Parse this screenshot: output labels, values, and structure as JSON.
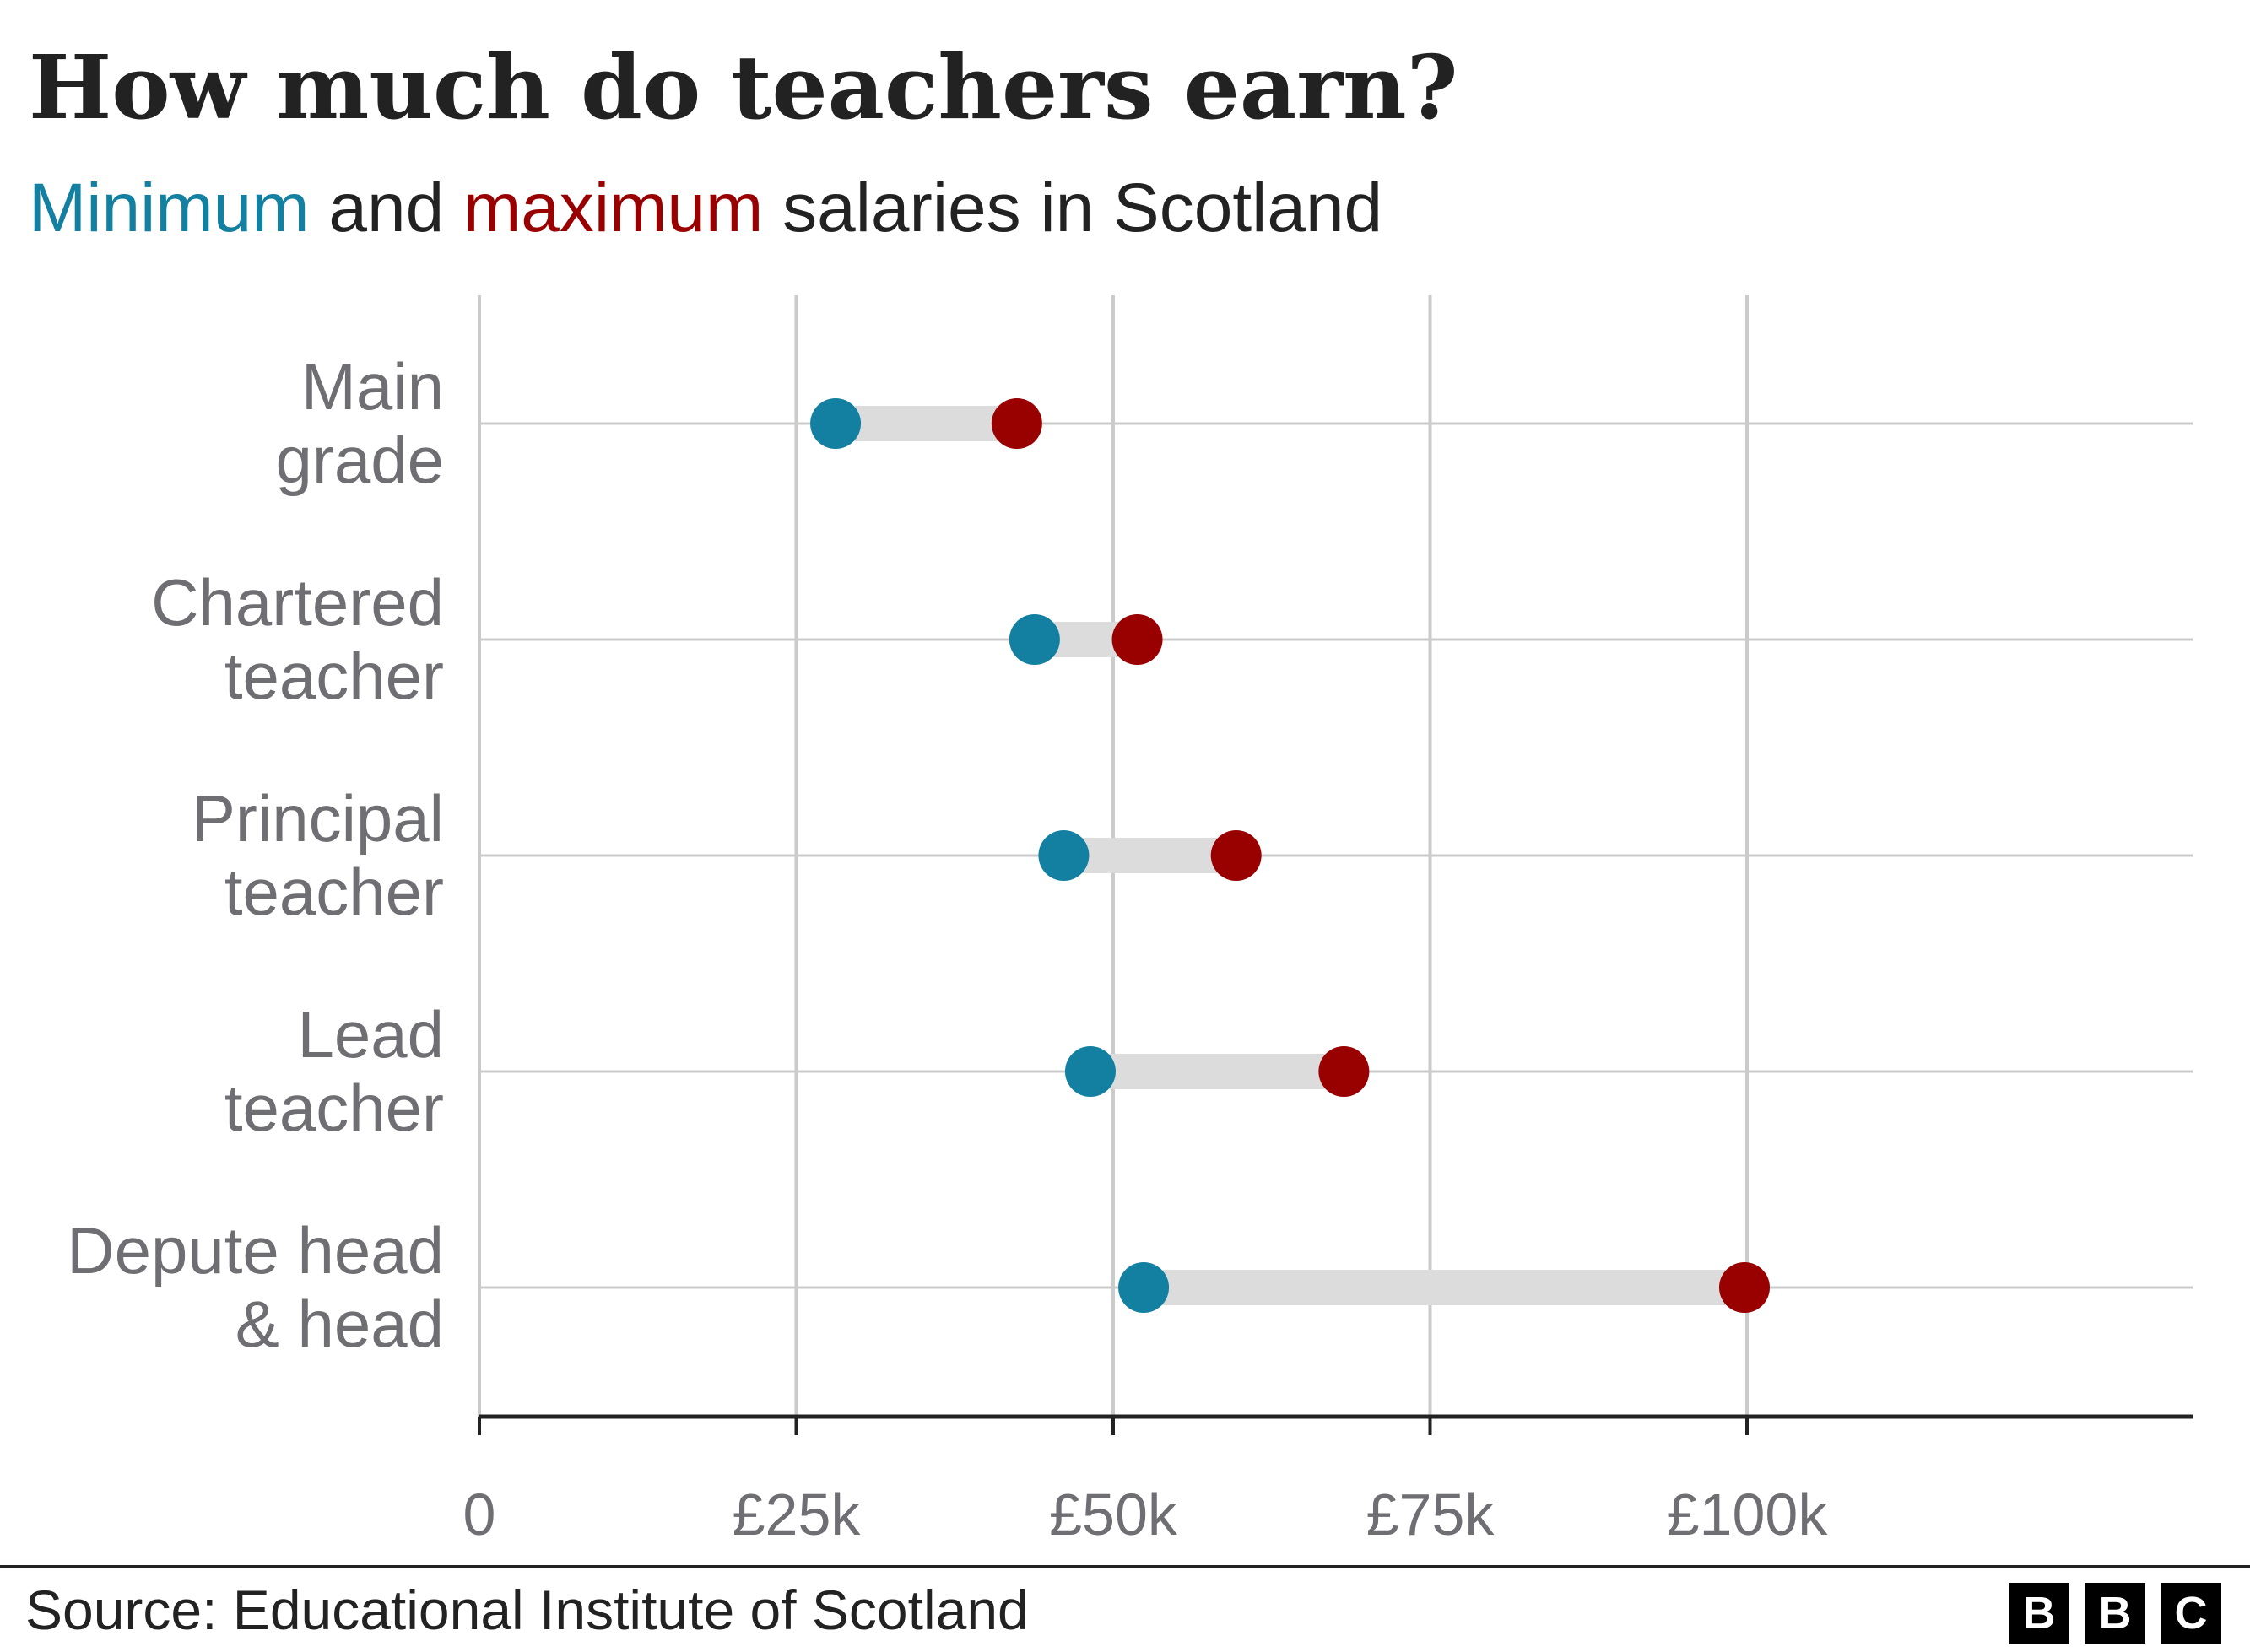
{
  "header": {
    "title": "How much do teachers earn?",
    "subtitle_parts": {
      "min_word": "Minimum",
      "and_word": " and ",
      "max_word": "maximum",
      "rest": " salaries in Scotland"
    }
  },
  "colors": {
    "min": "#1380a1",
    "max": "#990000",
    "text": "#222222",
    "category_text": "#6e6e73",
    "gridline": "#cbcbcb",
    "range_bar": "#dcdcdc",
    "axis": "#222222"
  },
  "chart_data": {
    "type": "dumbbell",
    "title": "How much do teachers earn?",
    "subtitle": "Minimum and maximum salaries in Scotland",
    "categories": [
      [
        "Main",
        "grade"
      ],
      [
        "Chartered",
        "teacher"
      ],
      [
        "Principal",
        "teacher"
      ],
      [
        "Lead",
        "teacher"
      ],
      [
        "Depute head",
        "& head"
      ]
    ],
    "series": [
      {
        "name": "Minimum",
        "color": "#1380a1",
        "values": [
          28100,
          43800,
          46100,
          48200,
          52400
        ]
      },
      {
        "name": "Maximum",
        "color": "#990000",
        "values": [
          42400,
          51900,
          59700,
          68200,
          99800
        ]
      }
    ],
    "x_ticks": [
      {
        "value": 0,
        "label": "0"
      },
      {
        "value": 25000,
        "label": "£25k"
      },
      {
        "value": 50000,
        "label": "£50k"
      },
      {
        "value": 75000,
        "label": "£75k"
      },
      {
        "value": 100000,
        "label": "£100k"
      }
    ],
    "xlim": [
      0,
      135000
    ],
    "xlabel": "",
    "ylabel": "",
    "grid": true,
    "legend": "in subtitle"
  },
  "footer": {
    "source": "Source: Educational Institute of Scotland",
    "logo_letters": [
      "B",
      "B",
      "C"
    ]
  }
}
